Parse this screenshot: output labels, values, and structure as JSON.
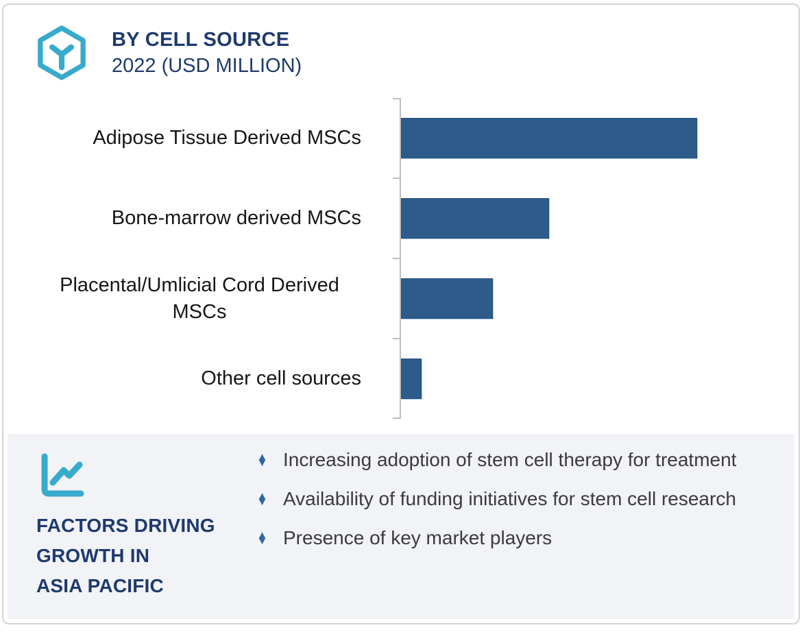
{
  "header": {
    "title": "BY CELL SOURCE",
    "subtitle": "2022 (USD MILLION)"
  },
  "chart_data": {
    "type": "bar",
    "orientation": "horizontal",
    "title": "BY CELL SOURCE",
    "subtitle": "2022 (USD MILLION)",
    "unit": "USD Million",
    "categories": [
      "Adipose Tissue Derived MSCs",
      "Bone-marrow derived MSCs",
      "Placental/Umlicial Cord Derived MSCs",
      "Other cell sources"
    ],
    "values_relative_pct_of_max": [
      100,
      50,
      31,
      7
    ],
    "value_axis_labels_visible": false,
    "gridlines": false,
    "legend": "none",
    "bar_color": "#2d5c8a",
    "axis_color": "#bdbdbd"
  },
  "panel": {
    "title": "FACTORS DRIVING\nGROWTH IN\nASIA PACIFIC",
    "bullets": [
      "Increasing adoption of stem cell therapy for treatment",
      "Availability of funding initiatives for stem cell research",
      "Presence of key market players"
    ]
  },
  "icons": {
    "hexagon_cube_icon": "hexagon-cube-icon",
    "trend_chart_icon": "line-chart-icon",
    "bullet_glyph": "♦"
  },
  "colors": {
    "navy": "#1e3a6d",
    "teal": "#38aacb",
    "bar_blue": "#2d5c8a",
    "text_dark": "#3b3b3b",
    "panel_bg": "#f1f3f7",
    "card_border": "#d4d4d4"
  }
}
